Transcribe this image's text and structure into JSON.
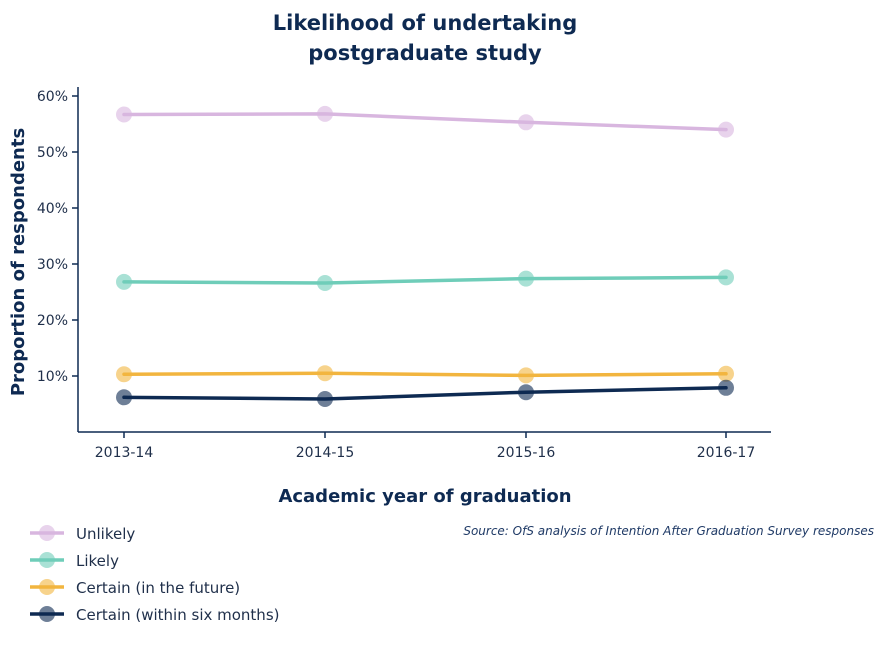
{
  "chart_data": {
    "type": "line",
    "title": [
      "Likelihood of undertaking",
      "postgraduate study"
    ],
    "xlabel": "Academic year of graduation",
    "ylabel": "Proportion of respondents",
    "x": [
      "2013-14",
      "2014-15",
      "2015-16",
      "2016-17"
    ],
    "yticks": [
      10,
      20,
      30,
      40,
      50,
      60
    ],
    "ytick_labels": [
      "10%",
      "20%",
      "30%",
      "40%",
      "50%",
      "60%"
    ],
    "ylim": [
      0,
      62
    ],
    "grid": false,
    "legend_position": "bottom-left",
    "source": "Source: OfS analysis of Intention After Graduation Survey responses",
    "series": [
      {
        "name": "Unlikely",
        "color": "#d8b6df",
        "values": [
          56.7,
          56.8,
          55.3,
          54.0
        ]
      },
      {
        "name": "Likely",
        "color": "#6fcdb9",
        "values": [
          26.8,
          26.6,
          27.4,
          27.6
        ]
      },
      {
        "name": "Certain (in the future)",
        "color": "#f2b53f",
        "values": [
          10.3,
          10.5,
          10.1,
          10.4
        ]
      },
      {
        "name": "Certain (within six months)",
        "color": "#0e2a52",
        "values": [
          6.2,
          5.9,
          7.1,
          7.9
        ]
      }
    ]
  }
}
